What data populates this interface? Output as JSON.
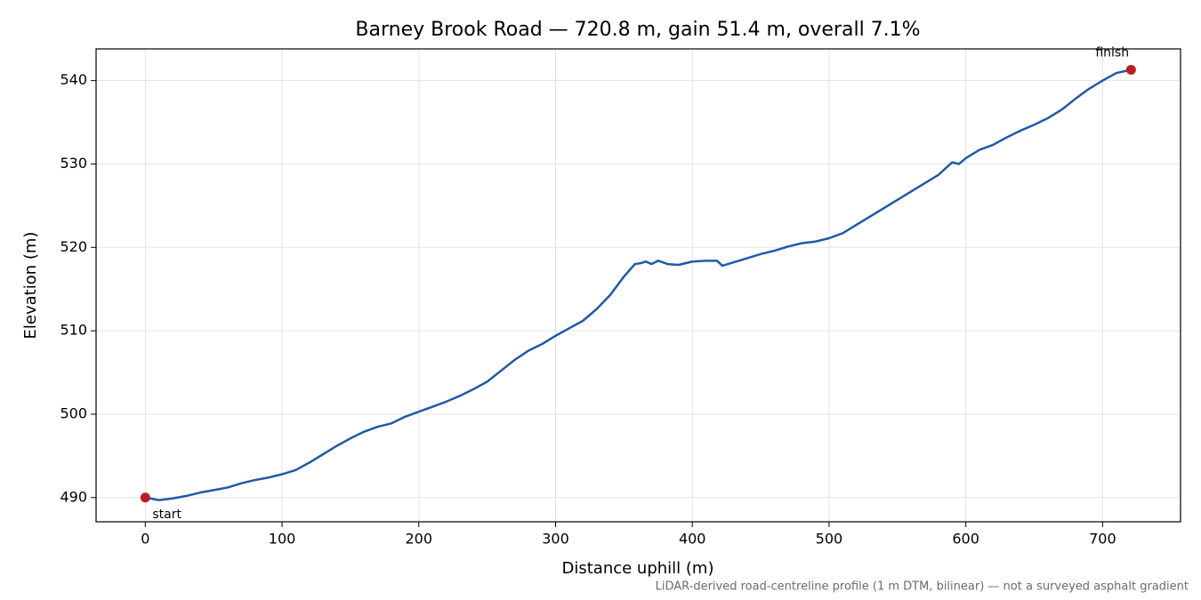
{
  "chart_data": {
    "type": "line",
    "title": "Barney Brook Road — 720.8 m, gain 51.4 m, overall 7.1%",
    "x_label": "Distance uphill (m)",
    "y_label": "Elevation (m)",
    "footnote": "LiDAR-derived road-centreline profile (1 m DTM, bilinear) — not a surveyed asphalt gradient",
    "x": [
      0,
      10,
      20,
      30,
      40,
      50,
      60,
      70,
      80,
      90,
      100,
      110,
      120,
      130,
      140,
      150,
      160,
      170,
      180,
      190,
      200,
      210,
      220,
      230,
      240,
      250,
      260,
      270,
      280,
      290,
      300,
      310,
      320,
      330,
      340,
      350,
      358,
      362,
      366,
      370,
      375,
      382,
      390,
      400,
      410,
      418,
      422,
      430,
      440,
      450,
      460,
      470,
      480,
      490,
      500,
      510,
      520,
      530,
      540,
      550,
      560,
      570,
      580,
      590,
      595,
      600,
      610,
      620,
      630,
      640,
      650,
      660,
      670,
      680,
      690,
      700,
      710,
      720.8
    ],
    "series": [
      {
        "color": "#1f5aa8",
        "values": [
          490.0,
          489.7,
          489.9,
          490.2,
          490.6,
          490.9,
          491.2,
          491.7,
          492.1,
          492.4,
          492.8,
          493.3,
          494.2,
          495.2,
          496.2,
          497.1,
          497.9,
          498.5,
          498.9,
          499.7,
          500.3,
          500.9,
          501.5,
          502.2,
          503.0,
          503.9,
          505.2,
          506.5,
          507.6,
          508.4,
          509.4,
          510.3,
          511.2,
          512.6,
          514.3,
          516.5,
          518.0,
          518.1,
          518.3,
          518.0,
          518.4,
          518.0,
          517.9,
          518.3,
          518.4,
          518.4,
          517.8,
          518.2,
          518.7,
          519.2,
          519.6,
          520.1,
          520.5,
          520.7,
          521.1,
          521.7,
          522.7,
          523.7,
          524.7,
          525.7,
          526.7,
          527.7,
          528.7,
          530.2,
          530.0,
          530.7,
          531.7,
          532.3,
          533.2,
          534.0,
          534.7,
          535.5,
          536.5,
          537.8,
          539.0,
          540.0,
          540.9,
          541.3
        ]
      }
    ],
    "markers": [
      {
        "label": "start",
        "x": 0,
        "y": 490.0
      },
      {
        "label": "finish",
        "x": 720.8,
        "y": 541.3
      }
    ],
    "marker_color": "#b81c25",
    "xlim": [
      -36,
      757
    ],
    "ylim": [
      487.1,
      543.8
    ],
    "xticks": [
      0,
      100,
      200,
      300,
      400,
      500,
      600,
      700
    ],
    "yticks": [
      490,
      500,
      510,
      520,
      530,
      540
    ],
    "grid": true
  }
}
